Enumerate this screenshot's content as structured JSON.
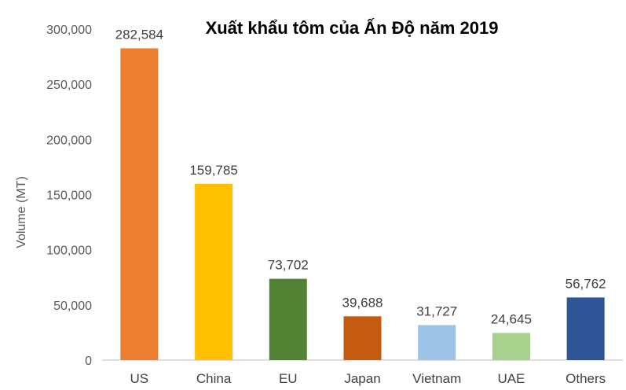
{
  "chart_data": {
    "type": "bar",
    "title": "Xuất khẩu tôm của Ấn Độ năm 2019",
    "xlabel": "",
    "ylabel": "Volume (MT)",
    "ylim": [
      0,
      300000
    ],
    "yticks": [
      0,
      50000,
      100000,
      150000,
      200000,
      250000,
      300000
    ],
    "ytick_labels": [
      "0",
      "50,000",
      "100,000",
      "150,000",
      "200,000",
      "250,000",
      "300,000"
    ],
    "grid": false,
    "legend": "none",
    "categories": [
      "US",
      "China",
      "EU",
      "Japan",
      "Vietnam",
      "UAE",
      "Others"
    ],
    "values": [
      282584,
      159785,
      73702,
      39688,
      31727,
      24645,
      56762
    ],
    "value_labels": [
      "282,584",
      "159,785",
      "73,702",
      "39,688",
      "31,727",
      "24,645",
      "56,762"
    ],
    "colors": [
      "#ED7D31",
      "#FFC000",
      "#548235",
      "#C55A11",
      "#9DC3E6",
      "#A9D18E",
      "#2F5597"
    ]
  },
  "colors": {
    "axis_line": "#bfbfbf"
  }
}
